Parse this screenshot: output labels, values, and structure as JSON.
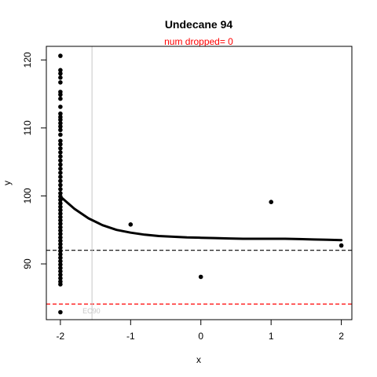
{
  "chart_data": {
    "type": "scatter",
    "title": "Undecane 94",
    "subtitle": "num dropped= 0",
    "xlabel": "x",
    "ylabel": "y",
    "xlim": [
      -2.2,
      2.15
    ],
    "ylim": [
      81.8,
      122.0
    ],
    "xticks": [
      -2,
      -1,
      0,
      1,
      2
    ],
    "yticks": [
      90,
      100,
      110,
      120
    ],
    "points": [
      {
        "x": -2,
        "y": 120.6
      },
      {
        "x": -2,
        "y": 118.5
      },
      {
        "x": -2,
        "y": 118.0
      },
      {
        "x": -2,
        "y": 117.4
      },
      {
        "x": -2,
        "y": 116.7
      },
      {
        "x": -2,
        "y": 115.3
      },
      {
        "x": -2,
        "y": 114.9
      },
      {
        "x": -2,
        "y": 114.3
      },
      {
        "x": -2,
        "y": 113.1
      },
      {
        "x": -2,
        "y": 112.1
      },
      {
        "x": -2,
        "y": 111.6
      },
      {
        "x": -2,
        "y": 111.2
      },
      {
        "x": -2,
        "y": 110.7
      },
      {
        "x": -2,
        "y": 110.2
      },
      {
        "x": -2,
        "y": 109.7
      },
      {
        "x": -2,
        "y": 109.0
      },
      {
        "x": -2,
        "y": 108.1
      },
      {
        "x": -2,
        "y": 107.6
      },
      {
        "x": -2,
        "y": 107.0
      },
      {
        "x": -2,
        "y": 106.4
      },
      {
        "x": -2,
        "y": 105.8
      },
      {
        "x": -2,
        "y": 105.2
      },
      {
        "x": -2,
        "y": 104.6
      },
      {
        "x": -2,
        "y": 104.0
      },
      {
        "x": -2,
        "y": 103.4
      },
      {
        "x": -2,
        "y": 102.8
      },
      {
        "x": -2,
        "y": 102.2
      },
      {
        "x": -2,
        "y": 101.6
      },
      {
        "x": -2,
        "y": 101.0
      },
      {
        "x": -2,
        "y": 100.4
      },
      {
        "x": -2,
        "y": 99.9
      },
      {
        "x": -2,
        "y": 99.4
      },
      {
        "x": -2,
        "y": 98.9
      },
      {
        "x": -2,
        "y": 98.4
      },
      {
        "x": -2,
        "y": 97.9
      },
      {
        "x": -2,
        "y": 97.4
      },
      {
        "x": -2,
        "y": 96.9
      },
      {
        "x": -2,
        "y": 96.4
      },
      {
        "x": -2,
        "y": 95.9
      },
      {
        "x": -2,
        "y": 95.4
      },
      {
        "x": -2,
        "y": 94.9
      },
      {
        "x": -2,
        "y": 94.4
      },
      {
        "x": -2,
        "y": 93.9
      },
      {
        "x": -2,
        "y": 93.4
      },
      {
        "x": -2,
        "y": 92.9
      },
      {
        "x": -2,
        "y": 92.4
      },
      {
        "x": -2,
        "y": 91.9
      },
      {
        "x": -2,
        "y": 91.4
      },
      {
        "x": -2,
        "y": 90.9
      },
      {
        "x": -2,
        "y": 90.4
      },
      {
        "x": -2,
        "y": 89.9
      },
      {
        "x": -2,
        "y": 89.4
      },
      {
        "x": -2,
        "y": 88.9
      },
      {
        "x": -2,
        "y": 88.4
      },
      {
        "x": -2,
        "y": 87.9
      },
      {
        "x": -2,
        "y": 87.4
      },
      {
        "x": -2,
        "y": 87.0
      },
      {
        "x": -2,
        "y": 82.9
      },
      {
        "x": -1,
        "y": 95.8
      },
      {
        "x": 0,
        "y": 88.1
      },
      {
        "x": 1,
        "y": 99.1
      },
      {
        "x": 2,
        "y": 92.7
      }
    ],
    "fit_curve": {
      "x": [
        -2.0,
        -1.8,
        -1.6,
        -1.4,
        -1.2,
        -1.0,
        -0.8,
        -0.6,
        -0.4,
        -0.2,
        0.0,
        0.2,
        0.4,
        0.6,
        0.8,
        1.0,
        1.2,
        1.4,
        1.6,
        1.8,
        2.0
      ],
      "y": [
        99.9,
        98.1,
        96.7,
        95.7,
        95.0,
        94.6,
        94.3,
        94.1,
        94.0,
        93.9,
        93.85,
        93.8,
        93.75,
        93.7,
        93.7,
        93.7,
        93.7,
        93.65,
        93.6,
        93.55,
        93.5
      ]
    },
    "reference_lines": [
      {
        "orientation": "horizontal",
        "y": 92.0,
        "color": "#000000",
        "style": "dashed"
      },
      {
        "orientation": "horizontal",
        "y": 84.1,
        "color": "#ff0000",
        "style": "dashed"
      },
      {
        "orientation": "vertical",
        "x": -1.55,
        "color": "#c8c8c8",
        "style": "solid",
        "label": "EC90"
      }
    ]
  }
}
